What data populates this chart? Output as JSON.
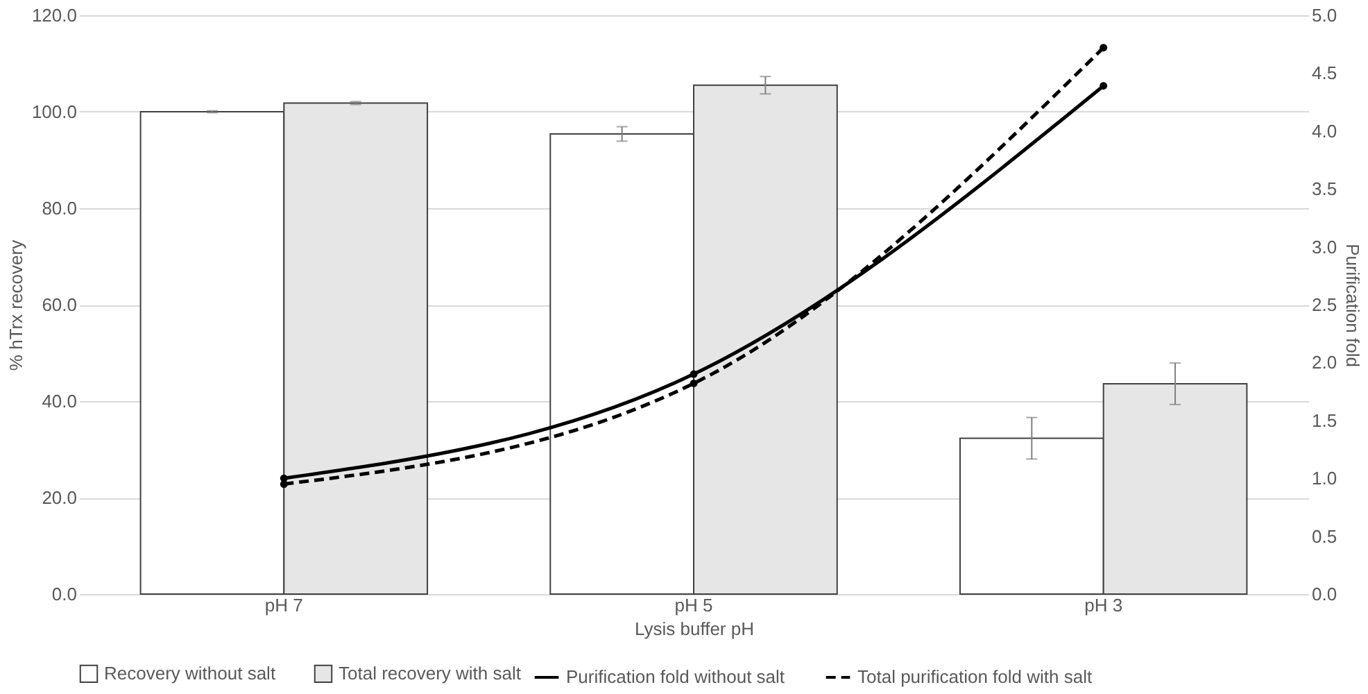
{
  "chart_data": {
    "type": "bar",
    "xlabel": "Lysis buffer pH",
    "ylabel": "% hTrx recovery",
    "y2label": "Purification fold",
    "categories": [
      "pH 7",
      "pH 5",
      "pH 3"
    ],
    "series": [
      {
        "name": "Recovery without salt",
        "color": "#ffffff",
        "values": [
          100.0,
          95.4,
          32.3
        ],
        "errors": [
          0.2,
          1.5,
          4.3
        ]
      },
      {
        "name": "Total recovery with salt",
        "color": "#e6e6e6",
        "values": [
          101.8,
          105.5,
          43.6
        ],
        "errors": [
          0.3,
          1.8,
          4.3
        ]
      },
      {
        "name": "Purification fold without salt",
        "type": "line",
        "axis": "y2",
        "color": "#000000",
        "line_style": "solid",
        "values": [
          1.0,
          1.9,
          4.39
        ]
      },
      {
        "name": "Total purification fold with salt",
        "type": "line",
        "axis": "y2",
        "color": "#000000",
        "line_style": "dashed",
        "values": [
          0.95,
          1.82,
          4.72
        ]
      }
    ],
    "ylim": [
      0,
      120
    ],
    "yticks": [
      {
        "value": 0,
        "label": "0.0"
      },
      {
        "value": 20,
        "label": "20.0"
      },
      {
        "value": 40,
        "label": "40.0"
      },
      {
        "value": 60,
        "label": "60.0"
      },
      {
        "value": 80,
        "label": "80.0"
      },
      {
        "value": 100,
        "label": "100.0"
      },
      {
        "value": 120,
        "label": "120.0"
      }
    ],
    "y2lim": [
      0,
      5
    ],
    "y2ticks": [
      {
        "value": 0,
        "label": "0.0"
      },
      {
        "value": 0.5,
        "label": "0.5"
      },
      {
        "value": 1,
        "label": "1.0"
      },
      {
        "value": 1.5,
        "label": "1.5"
      },
      {
        "value": 2,
        "label": "2.0"
      },
      {
        "value": 2.5,
        "label": "2.5"
      },
      {
        "value": 3,
        "label": "3.0"
      },
      {
        "value": 3.5,
        "label": "3.5"
      },
      {
        "value": 4,
        "label": "4.0"
      },
      {
        "value": 4.5,
        "label": "4.5"
      },
      {
        "value": 5,
        "label": "5.0"
      }
    ],
    "grid": "y",
    "legend": "bottom",
    "marker": "circle"
  }
}
